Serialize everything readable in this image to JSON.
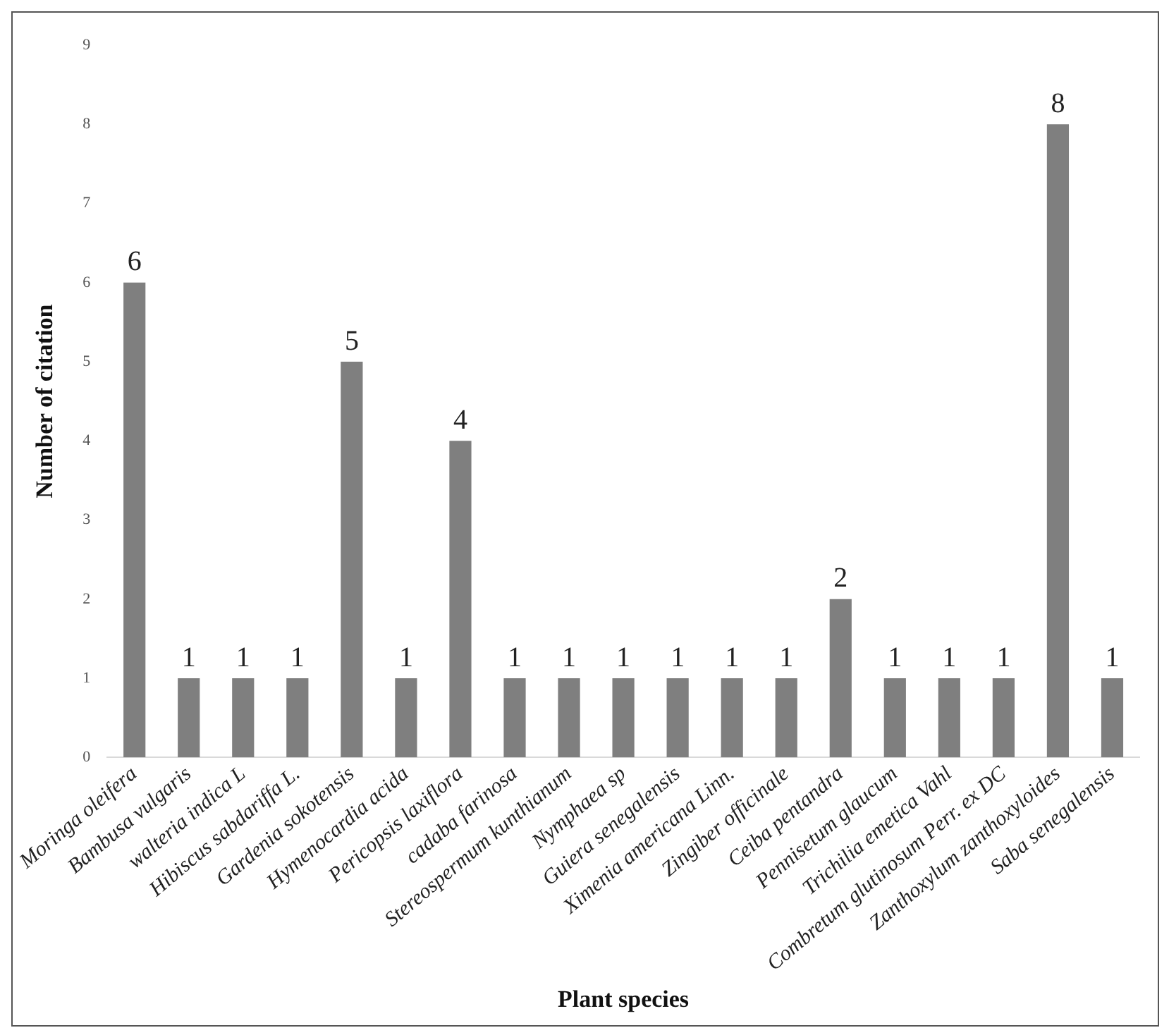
{
  "chart_data": {
    "type": "bar",
    "xlabel": "Plant species",
    "ylabel": "Number of citation",
    "categories": [
      "Moringa oleifera",
      "Bambusa vulgaris",
      "walteria indica L",
      "Hibiscus sabdariffa L.",
      "Gardenia sokotensis",
      "Hymenocardia acida",
      "Pericopsis laxiflora",
      "cadaba farinosa",
      "Stereospermum kunthianum",
      "Nymphaea sp",
      "Guiera senegalensis",
      "Ximenia americana Linn.",
      "Zingiber officinale",
      "Ceiba pentandra",
      "Pennisetum glaucum",
      "Trichilia emetica Vahl",
      "Combretum glutinosum Perr. ex DC",
      "Zanthoxylum zanthoxyloides",
      "Saba senegalensis"
    ],
    "values": [
      6,
      1,
      1,
      1,
      5,
      1,
      4,
      1,
      1,
      1,
      1,
      1,
      1,
      2,
      1,
      1,
      1,
      8,
      1
    ],
    "color": "#7f7f7f",
    "ylim": [
      0,
      9
    ],
    "yticks": [
      0,
      1,
      2,
      3,
      4,
      5,
      6,
      7,
      8,
      9
    ],
    "data_labels": true,
    "grid": false,
    "legend": false
  }
}
